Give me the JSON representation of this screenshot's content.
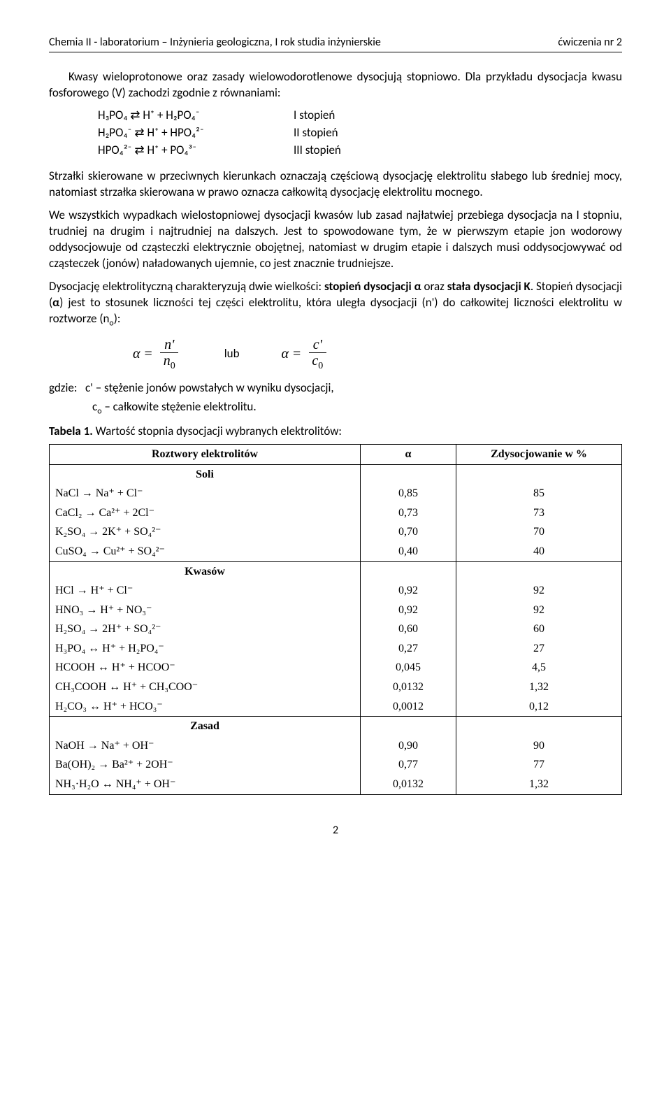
{
  "header": {
    "left": "Chemia II - laboratorium – Inżynieria geologiczna, I rok studia inżynierskie",
    "right": "ćwiczenia nr 2"
  },
  "p1": "Kwasy wieloprotonowe oraz zasady wielowodorotlenowe dysocjują stopniowo. Dla przykładu dysocjacja kwasu fosforowego (V) zachodzi zgodnie z równaniami:",
  "eq": {
    "r1f": "H₃PO₄ ⇄ H⁺ + H₂PO₄⁻",
    "r1l": "I stopień",
    "r2f": "H₂PO₄⁻ ⇄ H⁺ + HPO₄²⁻",
    "r2l": "II stopień",
    "r3f": "HPO₄²⁻ ⇄ H⁺ + PO₄³⁻",
    "r3l": "III stopień"
  },
  "p2": "Strzałki skierowane w przeciwnych kierunkach oznaczają częściową dysocjację elektrolitu słabego lub średniej mocy, natomiast strzałka skierowana w prawo oznacza całkowitą dysocjację elektrolitu mocnego.",
  "p3": "We wszystkich wypadkach wielostopniowej dysocjacji kwasów lub zasad najłatwiej przebiega dysocjacja na I stopniu, trudniej na drugim i najtrudniej na dalszych. Jest to spowodowane tym, że w pierwszym etapie jon wodorowy oddysocjowuje od cząsteczki elektrycznie obojętnej, natomiast w drugim etapie i dalszych musi oddysocjowywać od cząsteczek (jonów) naładowanych ujemnie, co jest znacznie trudniejsze.",
  "p4_a": "Dysocjację elektrolityczną charakteryzują dwie wielkości: ",
  "p4_b": "stopień dysocjacji α",
  "p4_c": " oraz ",
  "p4_d": "stała dysocjacji K",
  "p4_e": ". Stopień dysocjacji (",
  "p4_f": "α",
  "p4_g": ") jest to stosunek liczności tej części elektrolitu, która uległa dysocjacji (n') do całkowitej liczności elektrolitu w roztworze (n",
  "p4_h": "):",
  "formula": {
    "a": "α",
    "eq": "=",
    "n1n": "n'",
    "n1d": "n",
    "sub0": "0",
    "lub": "lub",
    "c1n": "c'",
    "c1d": "c"
  },
  "gdzie_lead": "gdzie:",
  "gdzie1": "c' – stężenie jonów powstałych w wyniku dysocjacji,",
  "gdzie2a": "c",
  "gdzie2b": " – całkowite stężenie elektrolitu.",
  "table_title_b": "Tabela 1.",
  "table_title": " Wartość stopnia dysocjacji wybranych elektrolitów:",
  "th": {
    "c1": "Roztwory elektrolitów",
    "c2": "α",
    "c3": "Zdysocjowanie w %"
  },
  "groups": {
    "g1": "Soli",
    "g2": "Kwasów",
    "g3": "Zasad"
  },
  "rows": {
    "s1": {
      "r": "NaCl → Na⁺ + Cl⁻",
      "a": "0,85",
      "p": "85"
    },
    "s2": {
      "r": "CaCl₂ → Ca²⁺ + 2Cl⁻",
      "a": "0,73",
      "p": "73"
    },
    "s3": {
      "r": "K₂SO₄ → 2K⁺ + SO₄²⁻",
      "a": "0,70",
      "p": "70"
    },
    "s4": {
      "r": "CuSO₄ → Cu²⁺ + SO₄²⁻",
      "a": "0,40",
      "p": "40"
    },
    "k1": {
      "r": "HCl → H⁺ + Cl⁻",
      "a": "0,92",
      "p": "92"
    },
    "k2": {
      "r": "HNO₃ → H⁺ + NO₃⁻",
      "a": "0,92",
      "p": "92"
    },
    "k3": {
      "r": "H₂SO₄ → 2H⁺ + SO₄²⁻",
      "a": "0,60",
      "p": "60"
    },
    "k4": {
      "r": "H₃PO₄ ↔ H⁺ + H₂PO₄⁻",
      "a": "0,27",
      "p": "27"
    },
    "k5": {
      "r": "HCOOH ↔ H⁺ + HCOO⁻",
      "a": "0,045",
      "p": "4,5"
    },
    "k6": {
      "r": "CH₃COOH ↔ H⁺ + CH₃COO⁻",
      "a": "0,0132",
      "p": "1,32"
    },
    "k7": {
      "r": "H₂CO₃ ↔ H⁺ + HCO₃⁻",
      "a": "0,0012",
      "p": "0,12"
    },
    "z1": {
      "r": "NaOH → Na⁺ + OH⁻",
      "a": "0,90",
      "p": "90"
    },
    "z2": {
      "r": "Ba(OH)₂ → Ba²⁺ + 2OH⁻",
      "a": "0,77",
      "p": "77"
    },
    "z3": {
      "r": "NH₃·H₂O ↔ NH₄⁺ + OH⁻",
      "a": "0,0132",
      "p": "1,32"
    }
  },
  "page_num": "2"
}
